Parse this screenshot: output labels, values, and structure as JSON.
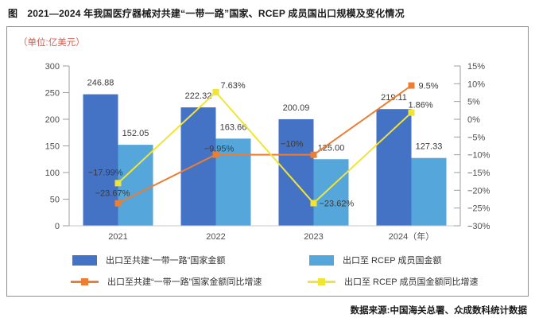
{
  "title": "图　2021—2024 年我国医疗器械对共建“一带一路”国家、RCEP 成员国出口规模及变化情况",
  "source": "数据来源:中国海关总署、众成数科统计数据",
  "chart_data": {
    "type": "bar",
    "subtype": "bar-line-combo",
    "unit_label": "（单位:亿美元）",
    "categories": [
      "2021",
      "2022",
      "2023",
      "2024"
    ],
    "x_axis_labels": [
      "2021",
      "2022",
      "2023",
      "2024（年）"
    ],
    "series": [
      {
        "name": "出口至共建“一带一路”国家金额",
        "type": "bar",
        "axis": "left",
        "color": "#4472c4",
        "values": [
          246.88,
          222.32,
          200.09,
          219.11
        ],
        "labels": [
          "246.88",
          "222.32",
          "200.09",
          "219.11"
        ]
      },
      {
        "name": "出口至 RCEP 成员国金额",
        "type": "bar",
        "axis": "left",
        "color": "#55a6da",
        "values": [
          152.05,
          163.66,
          125.0,
          127.33
        ],
        "labels": [
          "152.05",
          "163.66",
          "125.00",
          "127.33"
        ]
      },
      {
        "name": "出口至共建“一带一路”国家金额同比增速",
        "type": "line",
        "axis": "right",
        "color": "#ed7d31",
        "values": [
          -23.67,
          -9.95,
          -10,
          9.5
        ],
        "labels": [
          "−23.67%",
          "−9.95%",
          "−10%",
          "9.5%"
        ]
      },
      {
        "name": "出口至 RCEP 成员国金额同比增速",
        "type": "line",
        "axis": "right",
        "color": "#f2e435",
        "values": [
          -17.99,
          7.63,
          -23.62,
          1.86
        ],
        "labels": [
          "−17.99%",
          "7.63%",
          "−23.62%",
          "1.86%"
        ]
      }
    ],
    "left_axis": {
      "min": 0,
      "max": 300,
      "ticks": [
        0,
        50,
        100,
        150,
        200,
        250,
        300
      ]
    },
    "right_axis": {
      "min": -30,
      "max": 15,
      "ticks": [
        "15%",
        "10%",
        "5%",
        "0%",
        "−5%",
        "−10%",
        "−15%",
        "−20%",
        "−25%",
        "−30%"
      ]
    },
    "grid": false,
    "legend_position": "bottom",
    "legend": [
      {
        "label": "出口至共建“一带一路”国家金额",
        "type": "bar",
        "color": "#4472c4"
      },
      {
        "label": "出口至 RCEP 成员国金额",
        "type": "bar",
        "color": "#55a6da"
      },
      {
        "label": "出口至共建“一带一路”国家金额同比增速",
        "type": "line",
        "color": "#ed7d31"
      },
      {
        "label": "出口至 RCEP 成员国金额同比增速",
        "type": "line",
        "color": "#f2e435"
      }
    ]
  }
}
